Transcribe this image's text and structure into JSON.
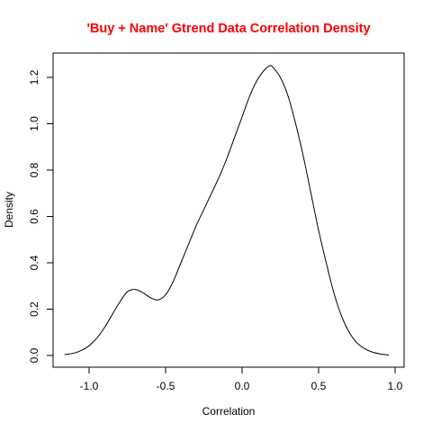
{
  "colors": {
    "title": "#ff0000",
    "line": "#000000",
    "frame": "#000000"
  },
  "chart_data": {
    "type": "line",
    "title": "'Buy + Name' Gtrend Data Correlation Density",
    "xlabel": "Correlation",
    "ylabel": "Density",
    "xlim": [
      -1.2,
      1.0
    ],
    "ylim": [
      -0.05,
      1.3
    ],
    "xticks": [
      -1.0,
      -0.5,
      0.0,
      0.5,
      1.0
    ],
    "xtick_labels": [
      "-1.0",
      "-0.5",
      "0.0",
      "0.5",
      "1.0"
    ],
    "yticks": [
      0.0,
      0.2,
      0.4,
      0.6,
      0.8,
      1.0,
      1.2
    ],
    "ytick_labels": [
      "0.0",
      "0.2",
      "0.4",
      "0.6",
      "0.8",
      "1.0",
      "1.2"
    ],
    "grid": false,
    "legend": "none",
    "series": [
      {
        "x": [
          -1.16,
          -1.1,
          -1.05,
          -1.0,
          -0.95,
          -0.9,
          -0.85,
          -0.8,
          -0.75,
          -0.7,
          -0.65,
          -0.6,
          -0.55,
          -0.5,
          -0.45,
          -0.4,
          -0.35,
          -0.3,
          -0.25,
          -0.2,
          -0.15,
          -0.1,
          -0.05,
          0.0,
          0.05,
          0.1,
          0.15,
          0.18,
          0.2,
          0.25,
          0.3,
          0.35,
          0.4,
          0.45,
          0.5,
          0.55,
          0.6,
          0.65,
          0.7,
          0.75,
          0.8,
          0.85,
          0.9,
          0.96
        ],
        "values": [
          0.004,
          0.01,
          0.022,
          0.042,
          0.075,
          0.12,
          0.175,
          0.23,
          0.275,
          0.285,
          0.272,
          0.25,
          0.24,
          0.262,
          0.32,
          0.4,
          0.48,
          0.56,
          0.63,
          0.7,
          0.77,
          0.85,
          0.94,
          1.03,
          1.12,
          1.19,
          1.235,
          1.25,
          1.245,
          1.2,
          1.12,
          1.0,
          0.86,
          0.7,
          0.54,
          0.4,
          0.27,
          0.17,
          0.1,
          0.055,
          0.03,
          0.015,
          0.007,
          0.002
        ]
      }
    ]
  }
}
